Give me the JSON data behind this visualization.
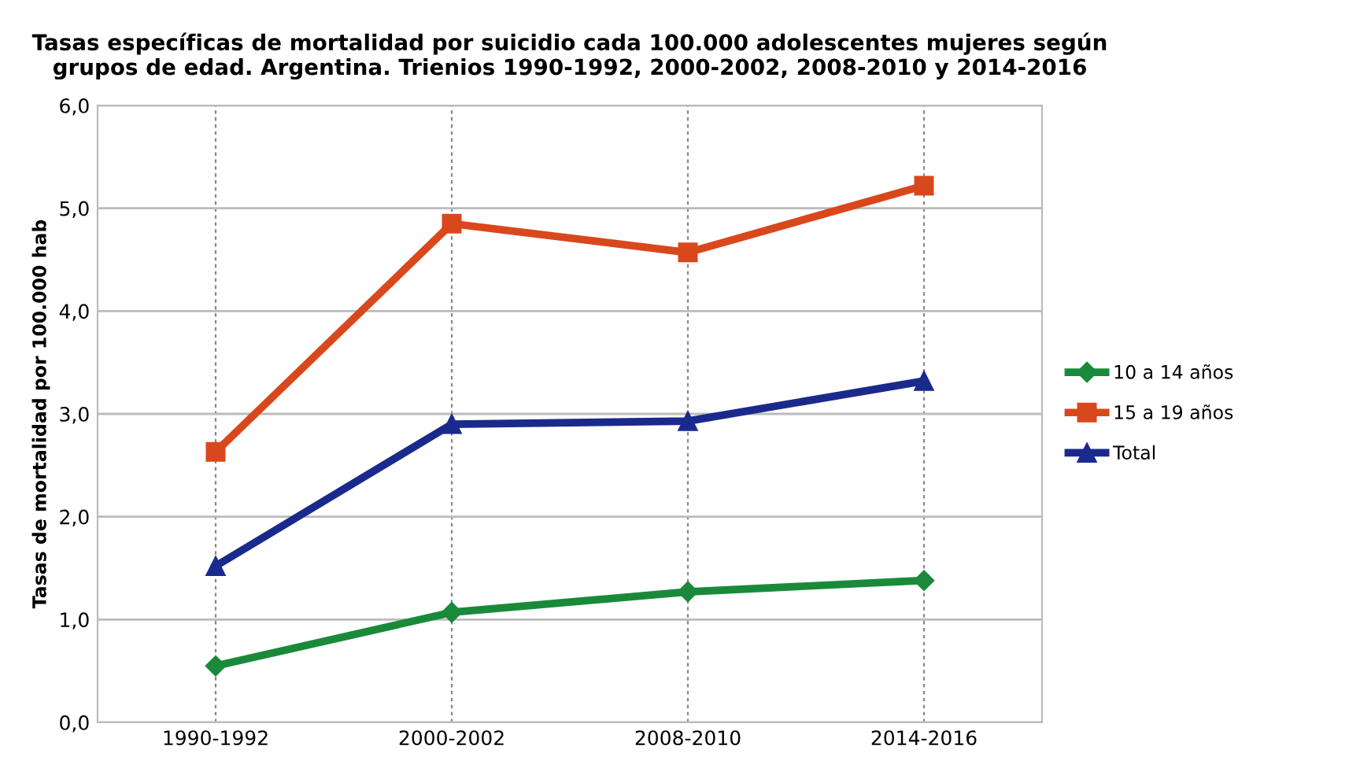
{
  "chart_data": {
    "type": "line",
    "title": "Tasas específicas de mortalidad por suicidio cada 100.000 adolescentes mujeres según\ngrupos de edad. Argentina. Trienios 1990-1992, 2000-2002, 2008-2010 y 2014-2016",
    "ylabel": "Tasas de mortalidad por 100.000 hab",
    "categories": [
      "1990-1992",
      "2000-2002",
      "2008-2010",
      "2014-2016"
    ],
    "series": [
      {
        "name": "10 a 14 años",
        "color": "#1a8a3a",
        "marker": "diamond",
        "values": [
          0.55,
          1.07,
          1.27,
          1.38
        ]
      },
      {
        "name": "15 a 19 años",
        "color": "#d9481c",
        "marker": "square",
        "values": [
          2.63,
          4.85,
          4.57,
          5.22
        ]
      },
      {
        "name": "Total",
        "color": "#1a2a8c",
        "marker": "triangle",
        "values": [
          1.52,
          2.9,
          2.93,
          3.32
        ]
      }
    ],
    "ylim": [
      0,
      6
    ],
    "yticks": [
      {
        "value": 0,
        "label": "0,0"
      },
      {
        "value": 1,
        "label": "1,0"
      },
      {
        "value": 2,
        "label": "2,0"
      },
      {
        "value": 3,
        "label": "3,0"
      },
      {
        "value": 4,
        "label": "4,0"
      },
      {
        "value": 5,
        "label": "5,0"
      },
      {
        "value": 6,
        "label": "6,0"
      }
    ],
    "grid": true,
    "legend": "right",
    "line_style": "solid"
  }
}
